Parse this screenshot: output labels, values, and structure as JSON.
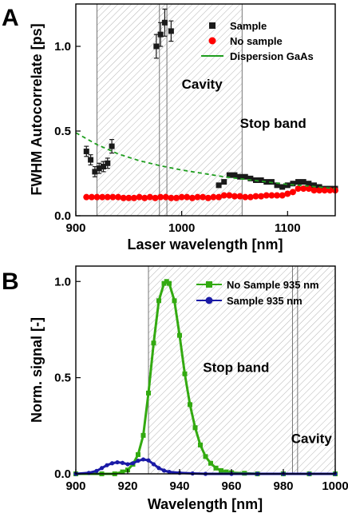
{
  "chart_data": [
    {
      "type": "scatter",
      "panel": "A",
      "xlabel": "Laser wavelength [nm]",
      "ylabel": "FWHM Autocorrelate [ps]",
      "xlim": [
        900,
        1145
      ],
      "ylim": [
        0,
        1.25
      ],
      "xticks": [
        900,
        1000,
        1100
      ],
      "xtick_labels": [
        "900",
        "1000",
        "1100"
      ],
      "yticks": [
        0,
        0.5,
        1
      ],
      "ytick_labels": [
        "0.0",
        "0.5",
        "1.0"
      ],
      "legend_position": "top-right",
      "legend": [
        "Sample",
        "No sample",
        "Dispersion GaAs"
      ],
      "annotations": [
        {
          "text": "Cavity",
          "x": 1000,
          "y": 0.75
        },
        {
          "text": "Stop band",
          "x": 1055,
          "y": 0.52
        }
      ],
      "shaded_regions": [
        {
          "label": "Stop band",
          "x0": 920,
          "x1": 1057
        },
        {
          "label": "Cavity",
          "x0": 979,
          "x1": 986
        }
      ],
      "colors": {
        "sample": "#1a1a1a",
        "no_sample": "#ff0000",
        "dispersion": "#1f9e1f"
      },
      "series": [
        {
          "name": "Sample",
          "marker": "square",
          "x": [
            910,
            914,
            918,
            922,
            926,
            930,
            934,
            976,
            980,
            984,
            990,
            1035,
            1040,
            1045,
            1050,
            1055,
            1060,
            1065,
            1070,
            1075,
            1080,
            1085,
            1090,
            1095,
            1100,
            1105,
            1110,
            1115,
            1120,
            1125,
            1130,
            1135,
            1140,
            1145
          ],
          "y": [
            0.38,
            0.33,
            0.26,
            0.28,
            0.29,
            0.31,
            0.41,
            1.0,
            1.07,
            1.14,
            1.09,
            0.18,
            0.2,
            0.24,
            0.24,
            0.23,
            0.23,
            0.22,
            0.21,
            0.21,
            0.2,
            0.2,
            0.18,
            0.17,
            0.18,
            0.19,
            0.2,
            0.2,
            0.19,
            0.18,
            0.17,
            0.16,
            0.16,
            0.16
          ],
          "yerr": [
            0.03,
            0.03,
            0.03,
            0.03,
            0.03,
            0.03,
            0.04,
            0.07,
            0.07,
            0.08,
            0.06,
            0.01,
            0.01,
            0.01,
            0.01,
            0.01,
            0.01,
            0.01,
            0.01,
            0.01,
            0.01,
            0.01,
            0.01,
            0.01,
            0.01,
            0.01,
            0.01,
            0.01,
            0.01,
            0.01,
            0.01,
            0.01,
            0.01,
            0.01
          ]
        },
        {
          "name": "No sample",
          "marker": "circle",
          "x": [
            910,
            915,
            920,
            925,
            930,
            935,
            940,
            945,
            950,
            955,
            960,
            965,
            970,
            975,
            980,
            985,
            990,
            995,
            1000,
            1005,
            1010,
            1015,
            1020,
            1025,
            1030,
            1035,
            1040,
            1045,
            1050,
            1055,
            1060,
            1065,
            1070,
            1075,
            1080,
            1085,
            1090,
            1095,
            1100,
            1105,
            1110,
            1115,
            1120,
            1125,
            1130,
            1135,
            1140,
            1145
          ],
          "y": [
            0.11,
            0.11,
            0.11,
            0.11,
            0.11,
            0.11,
            0.11,
            0.105,
            0.105,
            0.105,
            0.11,
            0.105,
            0.11,
            0.105,
            0.11,
            0.11,
            0.105,
            0.105,
            0.11,
            0.11,
            0.105,
            0.11,
            0.11,
            0.105,
            0.11,
            0.11,
            0.12,
            0.12,
            0.115,
            0.115,
            0.11,
            0.11,
            0.115,
            0.115,
            0.12,
            0.12,
            0.12,
            0.12,
            0.13,
            0.14,
            0.16,
            0.16,
            0.16,
            0.15,
            0.15,
            0.15,
            0.15,
            0.15
          ]
        },
        {
          "name": "Dispersion GaAs",
          "marker": "line",
          "x": [
            900,
            920,
            940,
            960,
            980,
            1000,
            1020,
            1040,
            1060,
            1080,
            1100,
            1120,
            1145
          ],
          "y": [
            0.49,
            0.42,
            0.365,
            0.325,
            0.295,
            0.27,
            0.25,
            0.23,
            0.215,
            0.2,
            0.185,
            0.175,
            0.16
          ]
        }
      ]
    },
    {
      "type": "line",
      "panel": "B",
      "xlabel": "Wavelength [nm]",
      "ylabel": "Norm. signal [-]",
      "xlim": [
        900,
        1000
      ],
      "ylim": [
        0,
        1.08
      ],
      "xticks": [
        900,
        920,
        940,
        960,
        980,
        1000
      ],
      "xtick_labels": [
        "900",
        "920",
        "940",
        "960",
        "980",
        "1000"
      ],
      "yticks": [
        0,
        0.5,
        1
      ],
      "ytick_labels": [
        "0.0",
        "0.5",
        "1.0"
      ],
      "legend_position": "top-right",
      "legend": [
        "No Sample 935 nm",
        "Sample 935 nm"
      ],
      "annotations": [
        {
          "text": "Stop band",
          "x": 949,
          "y": 0.53
        },
        {
          "text": "Cavity",
          "x": 983,
          "y": 0.16
        }
      ],
      "shaded_regions": [
        {
          "label": "Stop band",
          "x0": 928,
          "x1": 1000
        },
        {
          "label": "Cavity",
          "x0": 983.5,
          "x1": 985.5
        }
      ],
      "colors": {
        "no_sample": "#33aa11",
        "sample": "#1a1aa6"
      },
      "series": [
        {
          "name": "No Sample 935 nm",
          "marker": "square",
          "x": [
            900,
            910,
            915,
            918,
            920,
            922,
            924,
            926,
            928,
            930,
            932,
            934,
            935,
            936,
            938,
            940,
            942,
            944,
            946,
            948,
            950,
            952,
            954,
            956,
            958,
            960,
            965,
            970,
            980,
            990,
            1000
          ],
          "y": [
            0.0,
            0.0,
            0.0,
            0.01,
            0.02,
            0.05,
            0.1,
            0.2,
            0.42,
            0.68,
            0.9,
            0.99,
            1.0,
            0.99,
            0.9,
            0.72,
            0.52,
            0.36,
            0.24,
            0.15,
            0.09,
            0.055,
            0.03,
            0.017,
            0.01,
            0.006,
            0.003,
            0.0,
            0.0,
            0.0,
            0.0
          ]
        },
        {
          "name": "Sample 935 nm",
          "marker": "circle",
          "x": [
            900,
            905,
            908,
            910,
            912,
            914,
            916,
            918,
            920,
            922,
            924,
            926,
            928,
            930,
            932,
            934,
            936,
            940,
            945,
            950,
            960,
            970,
            980,
            990,
            1000
          ],
          "y": [
            0.0,
            0.005,
            0.015,
            0.03,
            0.045,
            0.055,
            0.06,
            0.057,
            0.05,
            0.055,
            0.068,
            0.075,
            0.07,
            0.05,
            0.03,
            0.017,
            0.01,
            0.005,
            0.002,
            0.0,
            0.0,
            0.0,
            0.0,
            0.0,
            0.0
          ]
        }
      ]
    }
  ],
  "panels": {
    "a": {
      "letter": "A"
    },
    "b": {
      "letter": "B"
    }
  }
}
